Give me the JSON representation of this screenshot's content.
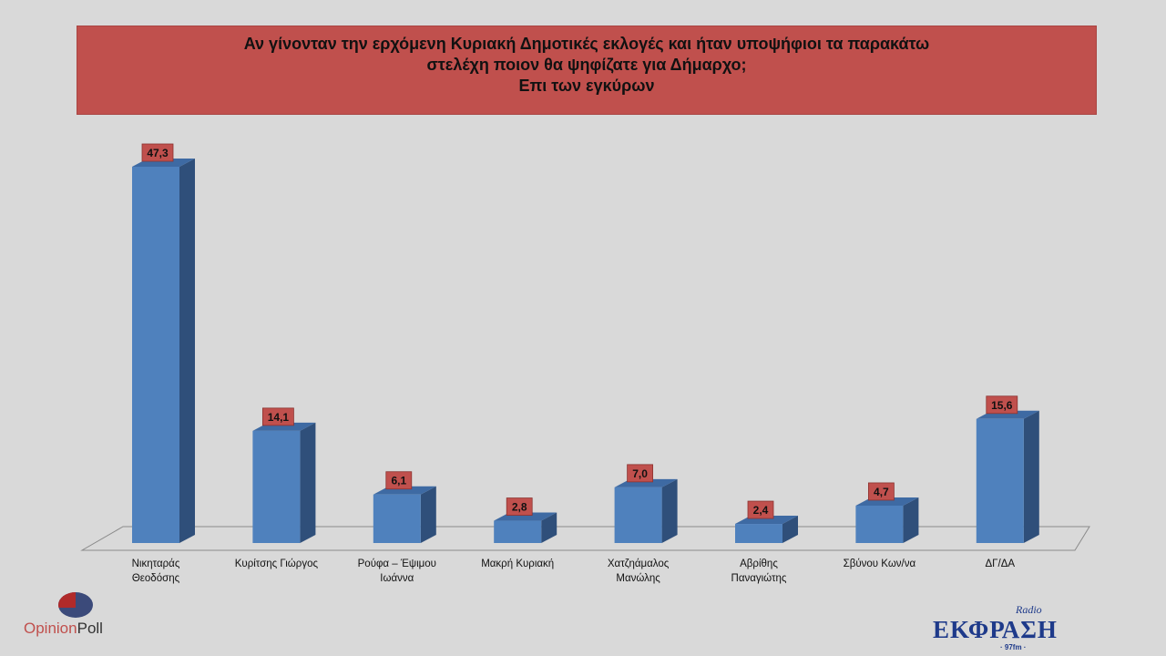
{
  "chart_data": {
    "type": "bar",
    "title_lines": [
      "Αν γίνονταν την ερχόμενη Κυριακή Δημοτικές εκλογές και ήταν υποψήφιοι τα παρακάτω",
      "στελέχη ποιον θα ψηφίζατε για Δήμαρχο;",
      "Επι των εγκύρων"
    ],
    "categories": [
      [
        "Νικηταράς",
        "Θεοδόσης"
      ],
      [
        "Κυρίτσης Γιώργος"
      ],
      [
        "Ρούφα – Έψιμου",
        "Ιωάννα"
      ],
      [
        "Μακρή Κυριακή"
      ],
      [
        "Χατζηάμαλος",
        "Μανώλης"
      ],
      [
        "Αβρίθης",
        "Παναγιώτης"
      ],
      [
        "Σβύνου Κων/να"
      ],
      [
        "ΔΓ/ΔΑ"
      ]
    ],
    "values": [
      47.3,
      14.1,
      6.1,
      2.8,
      7.0,
      2.4,
      4.7,
      15.6
    ],
    "value_labels": [
      "47,3",
      "14,1",
      "6,1",
      "2,8",
      "7,0",
      "2,4",
      "4,7",
      "15,6"
    ],
    "xlabel": "",
    "ylabel": "",
    "ylim": [
      0,
      50
    ],
    "grid": false,
    "legend": "none",
    "colors": {
      "bar": "#4f81bd",
      "bar_side": "#2f4f7a",
      "bar_top": "#3e6aa3",
      "label_bg": "#c0504d",
      "title_bg": "#c0504d"
    }
  },
  "logos": {
    "left": {
      "part1": "Opinion",
      "part2": "Poll"
    },
    "right": {
      "radio": "Radio",
      "name": "ΕΚΦΡΑΣΗ",
      "freq": "· 97fm ·"
    }
  }
}
